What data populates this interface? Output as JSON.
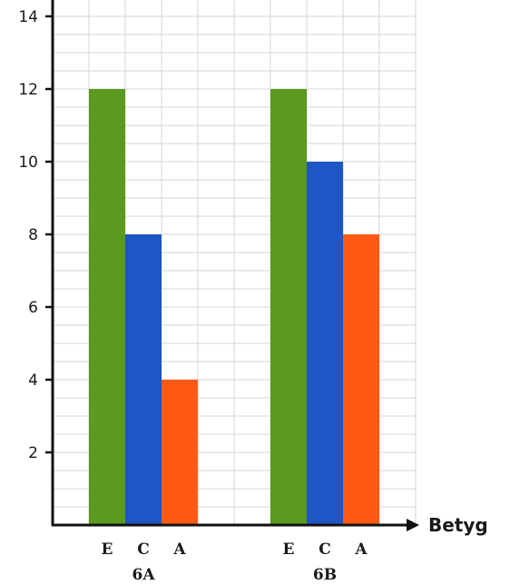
{
  "chart_data": {
    "type": "bar",
    "xlabel": "Betyg",
    "ylabel": "",
    "ylim": [
      0,
      14
    ],
    "yticks": [
      2,
      4,
      6,
      8,
      10,
      12,
      14
    ],
    "grid": true,
    "categories": [
      "E",
      "C",
      "A"
    ],
    "groups": [
      {
        "label": "6A",
        "values": [
          12,
          8,
          4
        ]
      },
      {
        "label": "6B",
        "values": [
          12,
          10,
          8
        ]
      }
    ],
    "colors": {
      "E": "#5a9a1e",
      "C": "#1f55c4",
      "A": "#ff5a14"
    }
  }
}
